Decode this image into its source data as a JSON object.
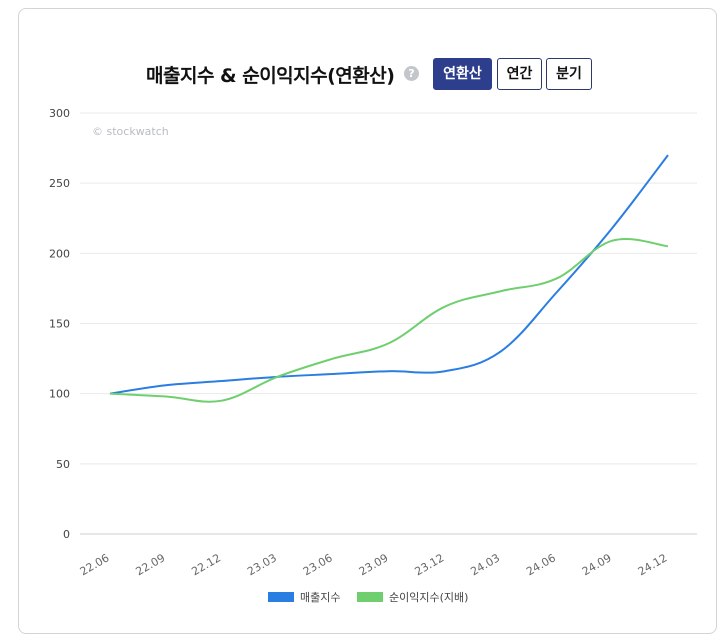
{
  "header": {
    "title": "매출지수 & 순이익지수(연환산)",
    "help_icon": "?",
    "buttons": [
      {
        "label": "연환산",
        "active": true
      },
      {
        "label": "연간",
        "active": false
      },
      {
        "label": "분기",
        "active": false
      }
    ]
  },
  "watermark": "© stockwatch",
  "colors": {
    "sales": "#2a7de1",
    "profit": "#6fcf6f",
    "active_button": "#2d3e8c"
  },
  "chart_data": {
    "type": "line",
    "x": [
      "22.06",
      "22.09",
      "22.12",
      "23.03",
      "23.06",
      "23.09",
      "23.12",
      "24.03",
      "24.06",
      "24.09",
      "24.12"
    ],
    "ylim": [
      0,
      300
    ],
    "yticks": [
      0,
      50,
      100,
      150,
      200,
      250,
      300
    ],
    "grid": true,
    "legend_position": "bottom",
    "series": [
      {
        "name": "매출지수",
        "color": "#2a7de1",
        "values": [
          100,
          106,
          109,
          112,
          114,
          116,
          116,
          130,
          172,
          218,
          270
        ]
      },
      {
        "name": "순이익지수(지배)",
        "color": "#6fcf6f",
        "values": [
          100,
          98,
          95,
          112,
          125,
          136,
          162,
          173,
          182,
          209,
          205
        ]
      }
    ]
  }
}
